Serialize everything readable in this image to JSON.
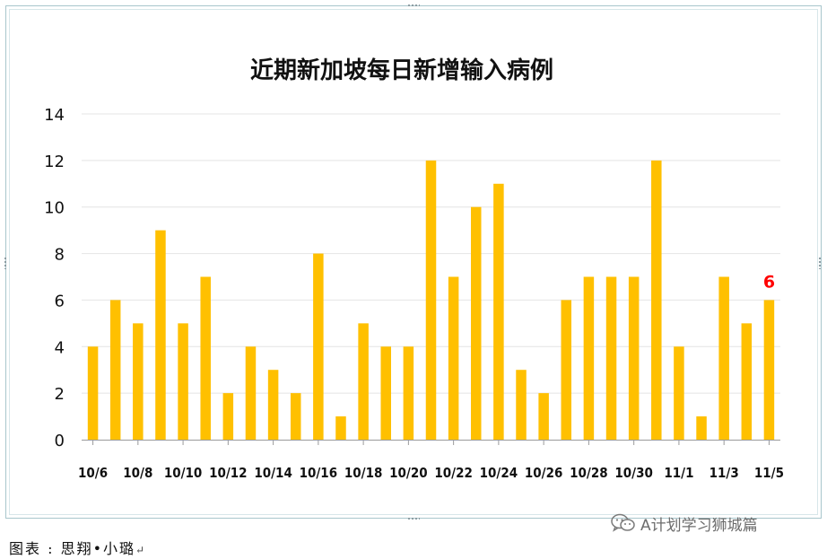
{
  "chart_data": {
    "type": "bar",
    "title": "近期新加坡每日新增输入病例",
    "categories": [
      "10/6",
      "10/7",
      "10/8",
      "10/9",
      "10/10",
      "10/11",
      "10/12",
      "10/13",
      "10/14",
      "10/15",
      "10/16",
      "10/17",
      "10/18",
      "10/19",
      "10/20",
      "10/21",
      "10/22",
      "10/23",
      "10/24",
      "10/25",
      "10/26",
      "10/27",
      "10/28",
      "10/29",
      "10/30",
      "10/31",
      "11/1",
      "11/2",
      "11/3",
      "11/4",
      "11/5"
    ],
    "x_tick_labels": [
      "10/6",
      "10/8",
      "10/10",
      "10/12",
      "10/14",
      "10/16",
      "10/18",
      "10/20",
      "10/22",
      "10/24",
      "10/26",
      "10/28",
      "10/30",
      "11/1",
      "11/3",
      "11/5"
    ],
    "values": [
      4,
      6,
      5,
      9,
      5,
      7,
      2,
      4,
      3,
      2,
      8,
      1,
      5,
      4,
      4,
      12,
      7,
      10,
      11,
      3,
      2,
      6,
      7,
      7,
      7,
      12,
      4,
      1,
      7,
      5,
      6
    ],
    "y_ticks": [
      "0",
      "2",
      "4",
      "6",
      "8",
      "10",
      "12",
      "14"
    ],
    "ylim": [
      0,
      14
    ],
    "grid": true,
    "bar_color": "#ffc000",
    "annotations": [
      {
        "category": "11/5",
        "text": "6",
        "color": "#ff0000"
      }
    ]
  },
  "caption": {
    "text": "图表 : 思翔•小璐",
    "return_mark": "↵"
  },
  "watermark": {
    "icon": "wechat-icon",
    "text": "A计划学习狮城篇"
  }
}
